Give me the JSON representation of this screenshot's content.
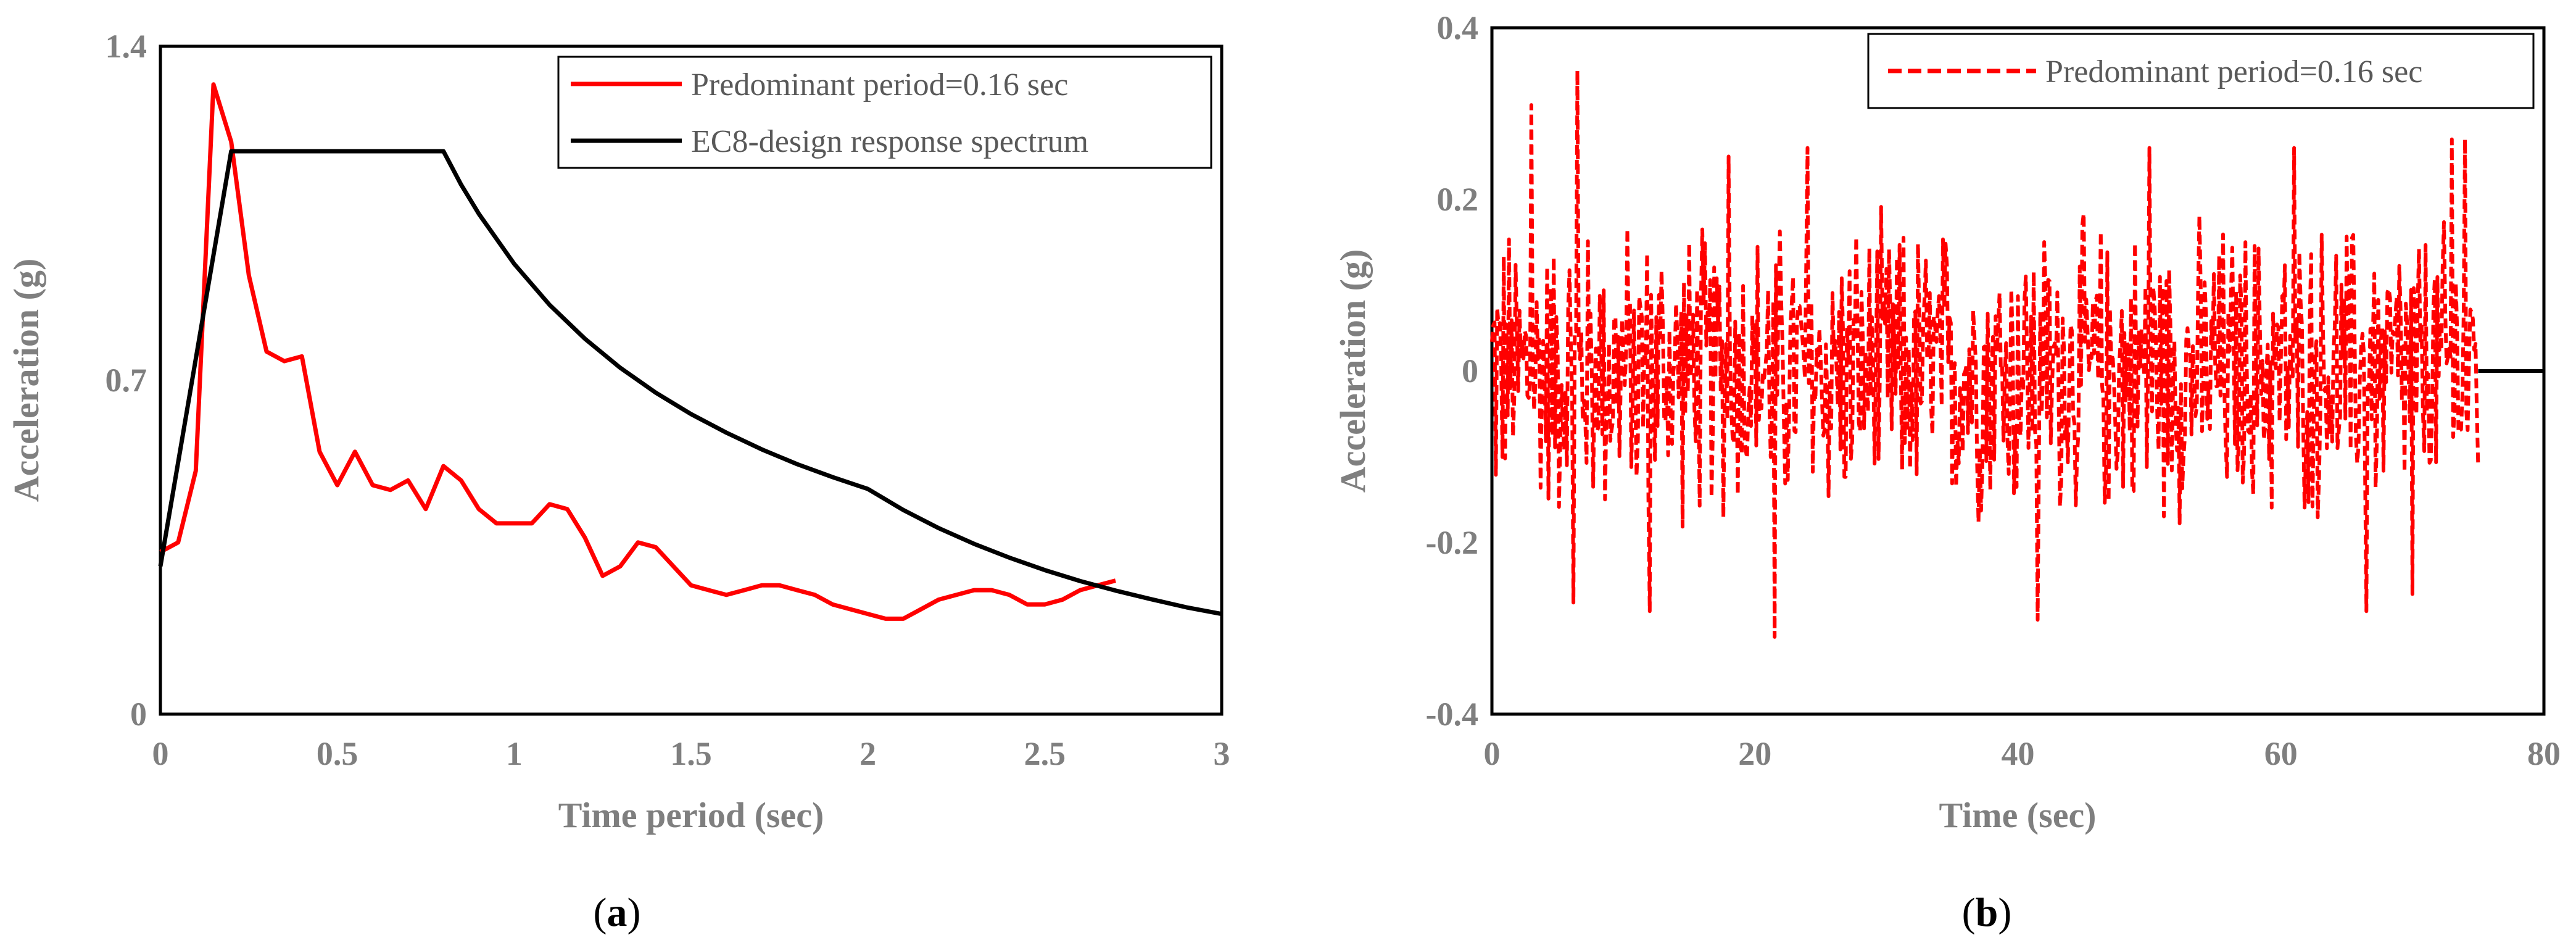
{
  "chart_data": [
    {
      "panel": "a",
      "type": "line",
      "caption": "a",
      "xlabel": "Time period (sec)",
      "ylabel": "Acceleration (g)",
      "xlim": [
        0,
        3
      ],
      "ylim": [
        0,
        1.4
      ],
      "xticks": [
        "0",
        "0.5",
        "1",
        "1.5",
        "2",
        "2.5",
        "3"
      ],
      "yticks": [
        "0",
        "0.7",
        "1.4"
      ],
      "legend_position": "top-right",
      "series": [
        {
          "name": "Predominant period=0.16 sec",
          "color": "#ff0000",
          "dash": "solid",
          "points": [
            [
              0,
              0.34
            ],
            [
              0.05,
              0.36
            ],
            [
              0.1,
              0.51
            ],
            [
              0.15,
              1.32
            ],
            [
              0.2,
              1.2
            ],
            [
              0.25,
              0.92
            ],
            [
              0.3,
              0.76
            ],
            [
              0.35,
              0.74
            ],
            [
              0.4,
              0.75
            ],
            [
              0.45,
              0.55
            ],
            [
              0.5,
              0.48
            ],
            [
              0.55,
              0.55
            ],
            [
              0.6,
              0.48
            ],
            [
              0.65,
              0.47
            ],
            [
              0.7,
              0.49
            ],
            [
              0.75,
              0.43
            ],
            [
              0.8,
              0.52
            ],
            [
              0.85,
              0.49
            ],
            [
              0.9,
              0.43
            ],
            [
              0.95,
              0.4
            ],
            [
              1.0,
              0.4
            ],
            [
              1.05,
              0.4
            ],
            [
              1.1,
              0.44
            ],
            [
              1.15,
              0.43
            ],
            [
              1.2,
              0.37
            ],
            [
              1.25,
              0.29
            ],
            [
              1.3,
              0.31
            ],
            [
              1.35,
              0.36
            ],
            [
              1.4,
              0.35
            ],
            [
              1.45,
              0.31
            ],
            [
              1.5,
              0.27
            ],
            [
              1.55,
              0.26
            ],
            [
              1.6,
              0.25
            ],
            [
              1.65,
              0.26
            ],
            [
              1.7,
              0.27
            ],
            [
              1.75,
              0.27
            ],
            [
              1.8,
              0.26
            ],
            [
              1.85,
              0.25
            ],
            [
              1.9,
              0.23
            ],
            [
              1.95,
              0.22
            ],
            [
              2.0,
              0.21
            ],
            [
              2.05,
              0.2
            ],
            [
              2.1,
              0.2
            ],
            [
              2.15,
              0.22
            ],
            [
              2.2,
              0.24
            ],
            [
              2.25,
              0.25
            ],
            [
              2.3,
              0.26
            ],
            [
              2.35,
              0.26
            ],
            [
              2.4,
              0.25
            ],
            [
              2.45,
              0.23
            ],
            [
              2.5,
              0.23
            ],
            [
              2.55,
              0.24
            ],
            [
              2.6,
              0.26
            ],
            [
              2.65,
              0.27
            ],
            [
              2.7,
              0.28
            ]
          ]
        },
        {
          "name": "EC8-design response spectrum",
          "color": "#000000",
          "dash": "solid",
          "points": [
            [
              0,
              0.31
            ],
            [
              0.2,
              1.18
            ],
            [
              0.8,
              1.18
            ],
            [
              0.85,
              1.11
            ],
            [
              0.9,
              1.049
            ],
            [
              1.0,
              0.944
            ],
            [
              1.1,
              0.858
            ],
            [
              1.2,
              0.787
            ],
            [
              1.3,
              0.726
            ],
            [
              1.4,
              0.674
            ],
            [
              1.5,
              0.629
            ],
            [
              1.6,
              0.59
            ],
            [
              1.7,
              0.555
            ],
            [
              1.8,
              0.524
            ],
            [
              1.9,
              0.497
            ],
            [
              2.0,
              0.472
            ],
            [
              2.1,
              0.428
            ],
            [
              2.2,
              0.39
            ],
            [
              2.3,
              0.357
            ],
            [
              2.4,
              0.328
            ],
            [
              2.5,
              0.302
            ],
            [
              2.6,
              0.279
            ],
            [
              2.7,
              0.259
            ],
            [
              2.8,
              0.241
            ],
            [
              2.9,
              0.224
            ],
            [
              3.0,
              0.21
            ]
          ]
        }
      ]
    },
    {
      "panel": "b",
      "type": "line",
      "caption": "b",
      "xlabel": "Time (sec)",
      "ylabel": "Acceleration (g)",
      "xlim": [
        0,
        80
      ],
      "ylim": [
        -0.4,
        0.4
      ],
      "xticks": [
        "0",
        "20",
        "40",
        "60",
        "80"
      ],
      "yticks": [
        "-0.4",
        "-0.2",
        "0",
        "0.2",
        "0.4"
      ],
      "legend_position": "top-right",
      "series": [
        {
          "name": "Predominant period=0.16 sec",
          "color": "#ff0000",
          "dash": "dashed",
          "duration": 75.0,
          "sample_step": 0.1,
          "typical_amplitude": 0.2,
          "peaks": [
            [
              3.0,
              0.31
            ],
            [
              6.5,
              0.35
            ],
            [
              21.5,
              -0.31
            ],
            [
              41.5,
              -0.29
            ],
            [
              66.5,
              -0.28
            ],
            [
              61.0,
              0.26
            ],
            [
              50.0,
              0.26
            ],
            [
              24.0,
              0.26
            ],
            [
              18.0,
              0.25
            ],
            [
              6.2,
              -0.27
            ],
            [
              12.0,
              -0.28
            ],
            [
              70.0,
              -0.26
            ],
            [
              73.0,
              0.27
            ],
            [
              74.0,
              0.27
            ]
          ]
        }
      ],
      "baseline_after_end": 0
    }
  ]
}
